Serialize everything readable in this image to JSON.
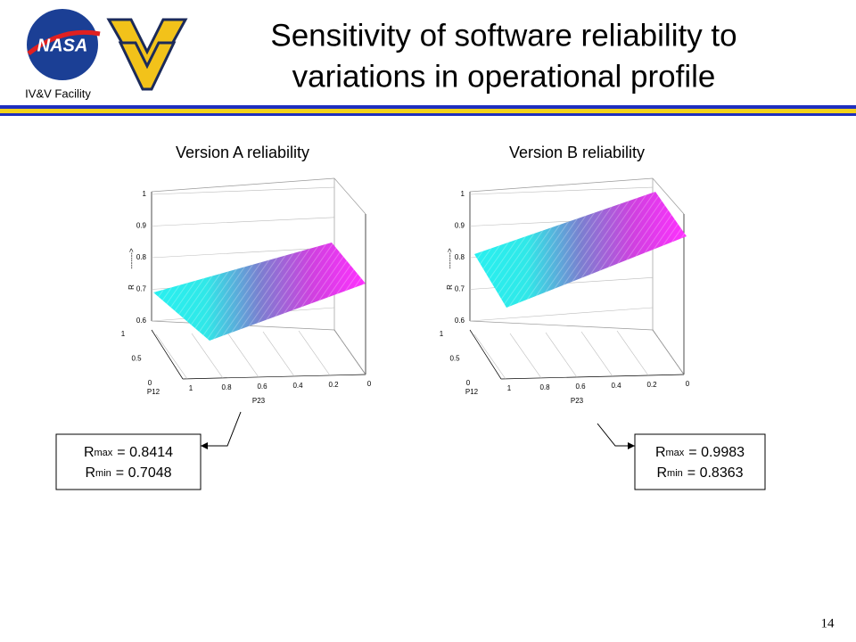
{
  "header": {
    "title_line1": "Sensitivity of software reliability to",
    "title_line2": "variations in operational profile",
    "facility": "IV&V Facility"
  },
  "plots": [
    {
      "title": "Version A reliability",
      "z_label": "R",
      "z_arrow": "------->",
      "x_label": "P12",
      "y_label": "P23",
      "z_ticks": [
        0.6,
        0.7,
        0.8,
        0.9,
        1
      ],
      "p12_ticks": [
        0,
        0.5,
        1
      ],
      "p23_ticks": [
        0,
        0.2,
        0.4,
        0.6,
        0.8,
        1
      ],
      "box": {
        "rmax_symbol": "R",
        "rmax_sub": "max",
        "rmax_value": "= 0.8414",
        "rmin_symbol": "R",
        "rmin_sub": "min",
        "rmin_value": "= 0.7048"
      }
    },
    {
      "title": "Version B reliability",
      "z_label": "R",
      "z_arrow": "------->",
      "x_label": "P12",
      "y_label": "P23",
      "z_ticks": [
        0.6,
        0.7,
        0.8,
        0.9,
        1
      ],
      "p12_ticks": [
        0,
        0.5,
        1
      ],
      "p23_ticks": [
        0,
        0.2,
        0.4,
        0.6,
        0.8,
        1
      ],
      "box": {
        "rmax_symbol": "R",
        "rmax_sub": "max",
        "rmax_value": "= 0.9983",
        "rmin_symbol": "R",
        "rmin_sub": "min",
        "rmin_value": "= 0.8363"
      }
    }
  ],
  "slide_number": "14"
}
